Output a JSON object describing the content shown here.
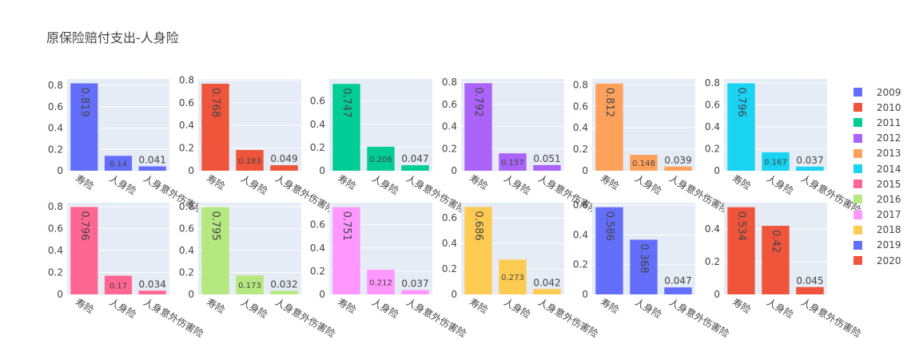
{
  "title": "原保险赔付支出-人身险",
  "chart_data": {
    "type": "bar",
    "layout": "small-multiples 2x6",
    "categories": [
      "寿险",
      "人身险",
      "人身意外伤害险"
    ],
    "legend_position": "right",
    "grid": true,
    "panels": [
      {
        "name": "2009",
        "color": "#636efa",
        "values": [
          0.819,
          0.14,
          0.041
        ],
        "ylim": [
          0,
          0.86
        ],
        "yticks": [
          0,
          0.2,
          0.4,
          0.6,
          0.8
        ]
      },
      {
        "name": "2010",
        "color": "#ef553b",
        "values": [
          0.768,
          0.183,
          0.049
        ],
        "ylim": [
          0,
          0.81
        ],
        "yticks": [
          0,
          0.2,
          0.4,
          0.6,
          0.8
        ]
      },
      {
        "name": "2011",
        "color": "#00cc96",
        "values": [
          0.747,
          0.206,
          0.047
        ],
        "ylim": [
          0,
          0.79
        ],
        "yticks": [
          0,
          0.2,
          0.4,
          0.6
        ]
      },
      {
        "name": "2012",
        "color": "#ab63fa",
        "values": [
          0.792,
          0.157,
          0.051
        ],
        "ylim": [
          0,
          0.83
        ],
        "yticks": [
          0,
          0.2,
          0.4,
          0.6,
          0.8
        ]
      },
      {
        "name": "2013",
        "color": "#ffa15a",
        "values": [
          0.812,
          0.148,
          0.039
        ],
        "ylim": [
          0,
          0.855
        ],
        "yticks": [
          0,
          0.2,
          0.4,
          0.6,
          0.8
        ]
      },
      {
        "name": "2014",
        "color": "#19d3f3",
        "values": [
          0.796,
          0.167,
          0.037
        ],
        "ylim": [
          0,
          0.835
        ],
        "yticks": [
          0,
          0.2,
          0.4,
          0.6,
          0.8
        ]
      },
      {
        "name": "2015",
        "color": "#ff6692",
        "values": [
          0.796,
          0.17,
          0.034
        ],
        "ylim": [
          0,
          0.835
        ],
        "yticks": [
          0,
          0.2,
          0.4,
          0.6,
          0.8
        ]
      },
      {
        "name": "2016",
        "color": "#b6e880",
        "values": [
          0.795,
          0.173,
          0.032
        ],
        "ylim": [
          0,
          0.835
        ],
        "yticks": [
          0,
          0.2,
          0.4,
          0.6,
          0.8
        ]
      },
      {
        "name": "2017",
        "color": "#ff97ff",
        "values": [
          0.751,
          0.212,
          0.037
        ],
        "ylim": [
          0,
          0.79
        ],
        "yticks": [
          0,
          0.2,
          0.4,
          0.6
        ]
      },
      {
        "name": "2018",
        "color": "#fecb52",
        "values": [
          0.686,
          0.273,
          0.042
        ],
        "ylim": [
          0,
          0.72
        ],
        "yticks": [
          0,
          0.2,
          0.4,
          0.6
        ]
      },
      {
        "name": "2019",
        "color": "#636efa",
        "values": [
          0.586,
          0.368,
          0.047
        ],
        "ylim": [
          0,
          0.617
        ],
        "yticks": [
          0,
          0.2,
          0.4,
          0.6
        ]
      },
      {
        "name": "2020",
        "color": "#ef553b",
        "values": [
          0.534,
          0.42,
          0.045
        ],
        "ylim": [
          0,
          0.562
        ],
        "yticks": [
          0,
          0.2,
          0.4
        ]
      }
    ]
  }
}
